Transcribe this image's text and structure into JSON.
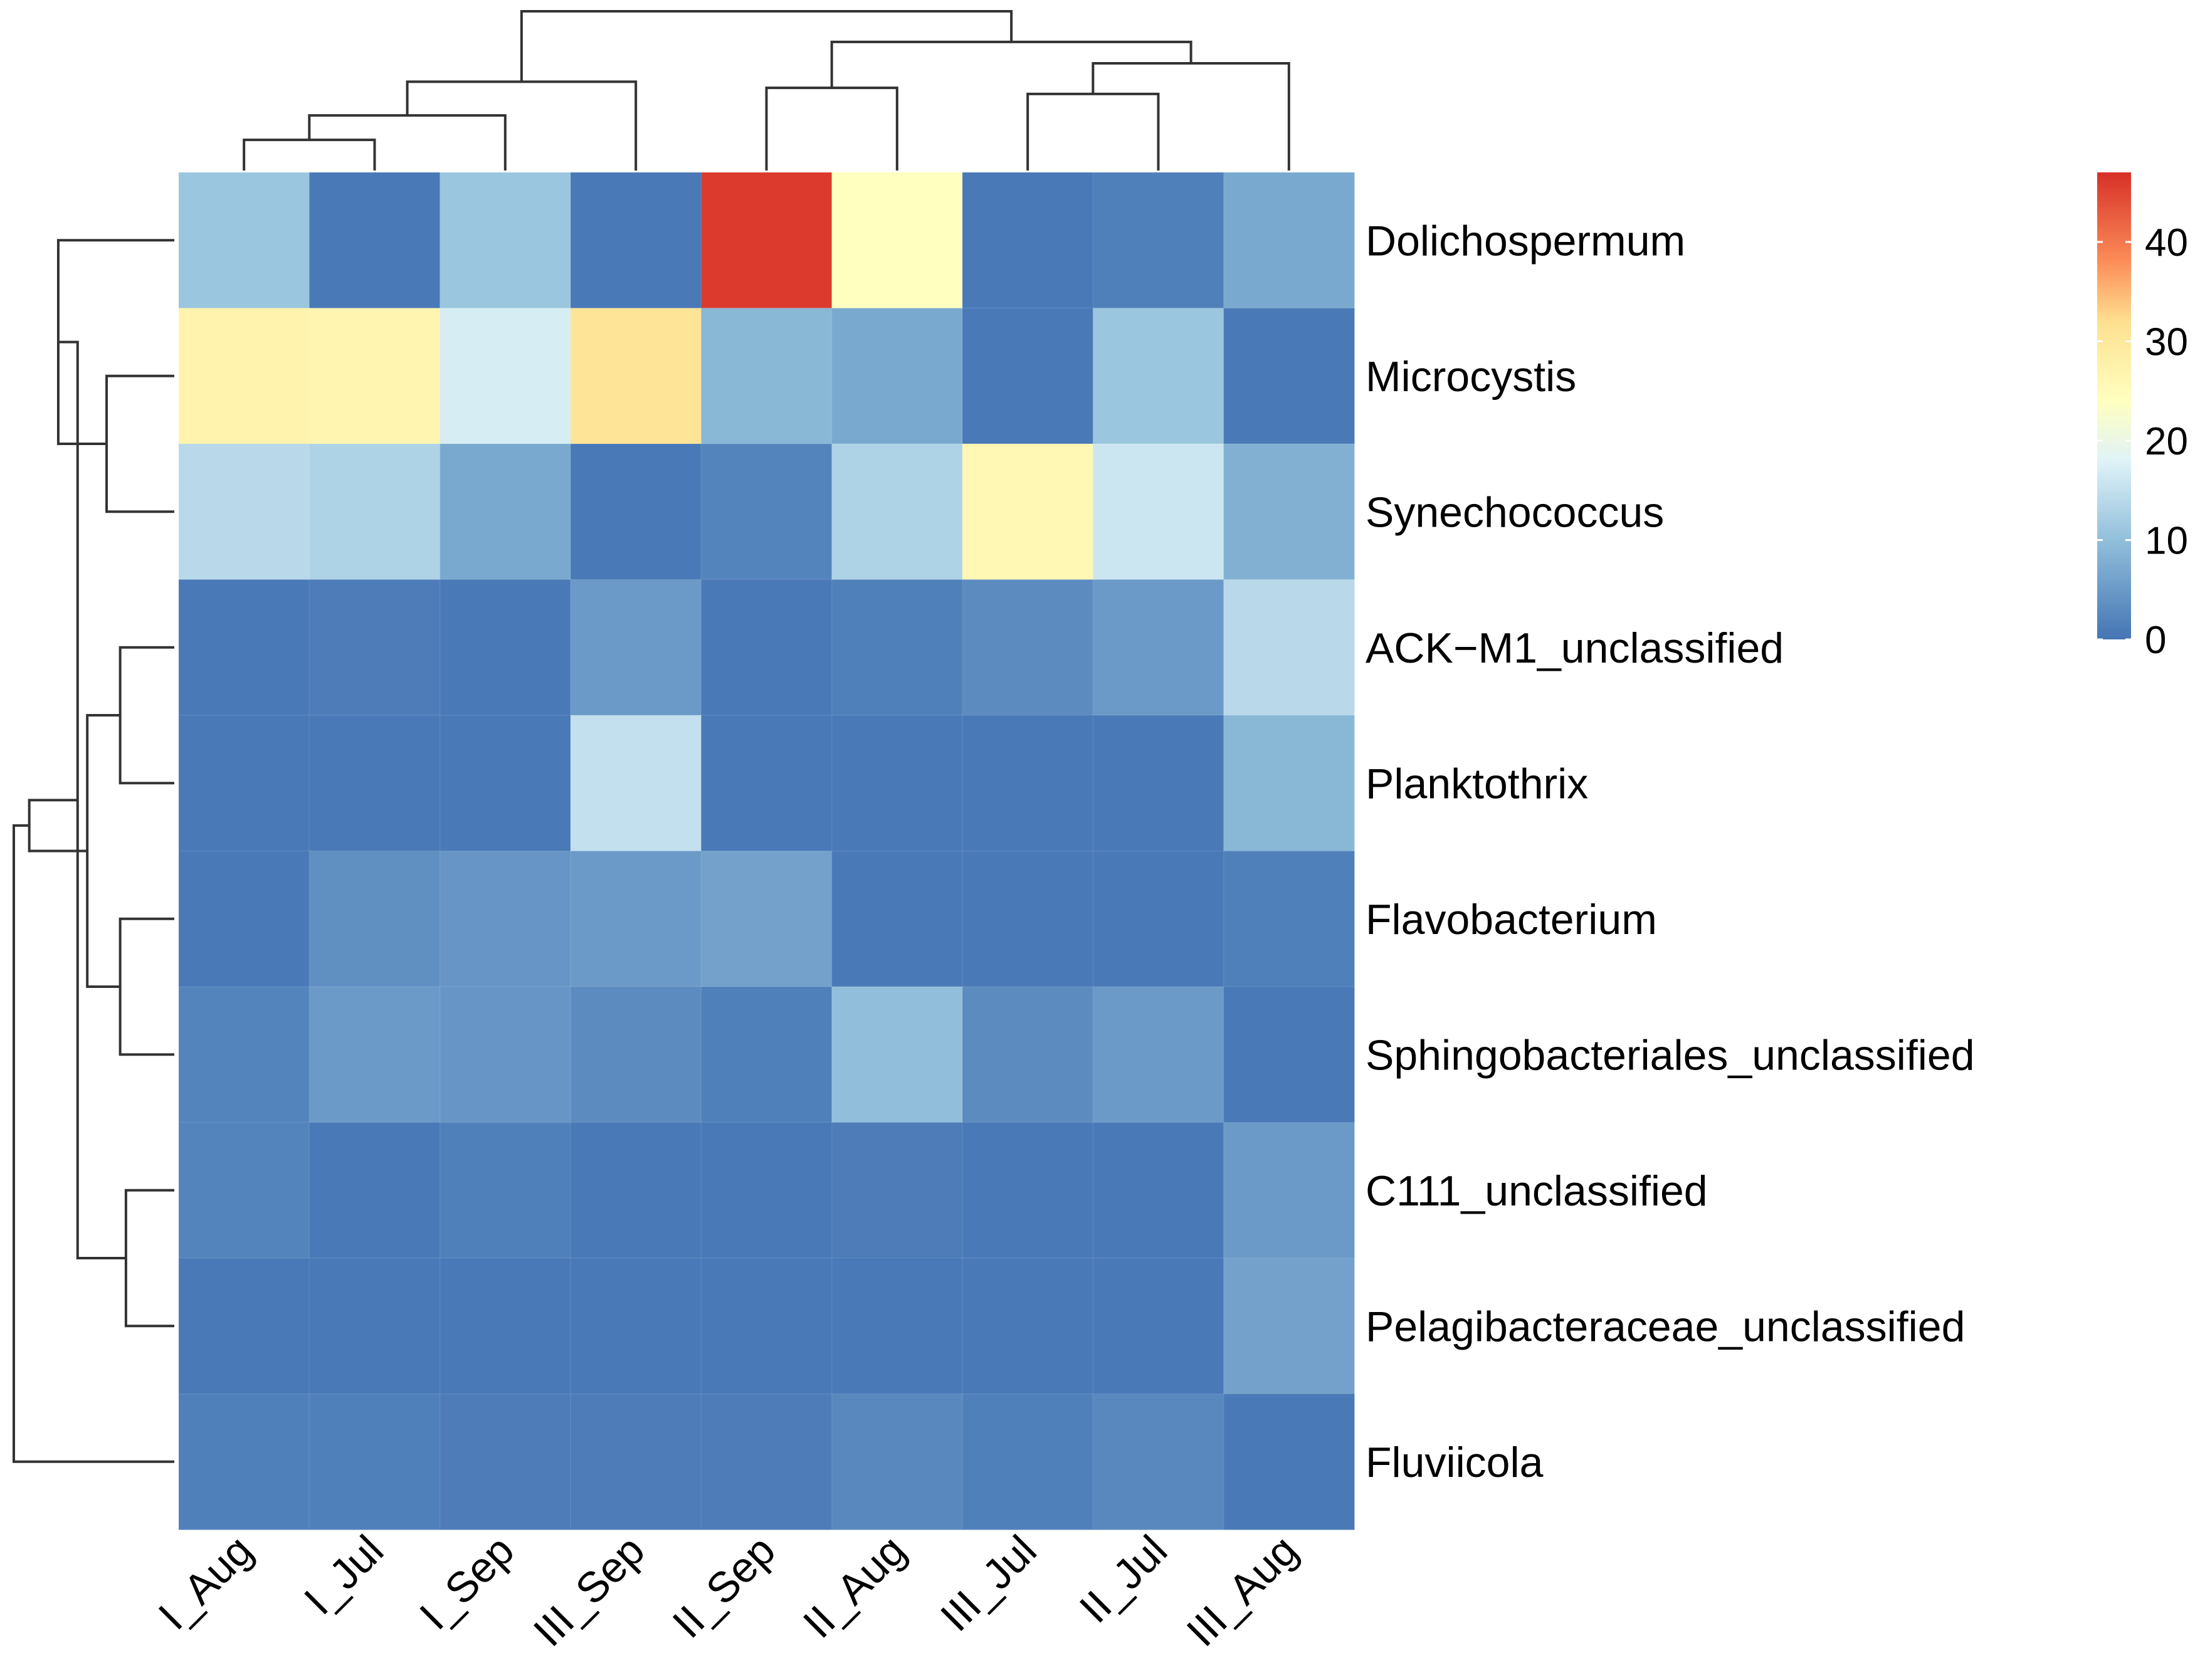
{
  "chart_data": {
    "type": "heatmap",
    "title": "",
    "rows": [
      "Dolichospermum",
      "Microcystis",
      "Synechococcus",
      "ACK−M1_unclassified",
      "Planktothrix",
      "Flavobacterium",
      "Sphingobacteriales_unclassified",
      "C111_unclassified",
      "Pelagibacteraceae_unclassified",
      "Fluviicola"
    ],
    "columns": [
      "I_Aug",
      "I_Jul",
      "I_Sep",
      "III_Sep",
      "II_Sep",
      "II_Aug",
      "III_Jul",
      "II_Jul",
      "III_Aug"
    ],
    "values": [
      [
        11,
        0.5,
        11,
        0.5,
        46,
        24,
        0.5,
        1.5,
        7
      ],
      [
        27,
        26.5,
        17,
        31,
        9,
        7,
        0.5,
        11,
        0.5
      ],
      [
        14,
        13,
        7,
        0.5,
        2,
        13,
        26,
        16,
        8
      ],
      [
        0.5,
        1,
        0.5,
        5,
        0.5,
        1.5,
        3,
        5,
        14
      ],
      [
        0.5,
        0.5,
        0.5,
        15,
        0.5,
        0.5,
        0.5,
        0.5,
        9
      ],
      [
        0.5,
        3.5,
        4.5,
        5,
        6,
        0.5,
        0.5,
        0.5,
        1.5
      ],
      [
        2,
        5,
        4.5,
        3,
        1.5,
        10,
        3,
        5,
        0.5
      ],
      [
        2,
        0.5,
        1.5,
        0.5,
        0.5,
        1,
        0.5,
        0.5,
        5
      ],
      [
        0.5,
        0.5,
        0.5,
        0.5,
        0.5,
        0.5,
        0.5,
        0.5,
        6
      ],
      [
        1.5,
        1.5,
        1,
        1,
        1,
        2.5,
        1.5,
        2.5,
        0.5
      ]
    ],
    "color_scale": {
      "min": 0,
      "max": 47,
      "stops": [
        {
          "value": 0,
          "color": "#4575b4"
        },
        {
          "value": 10,
          "color": "#91bfdb"
        },
        {
          "value": 18,
          "color": "#e0f3f8"
        },
        {
          "value": 24,
          "color": "#ffffbf"
        },
        {
          "value": 32,
          "color": "#fee090"
        },
        {
          "value": 38,
          "color": "#fc8d59"
        },
        {
          "value": 47,
          "color": "#d73027"
        }
      ],
      "ticks": [
        0,
        10,
        20,
        30,
        40
      ]
    },
    "legend_position": "top-right",
    "row_dendrogram": [
      [
        2,
        3,
        3.5
      ],
      [
        1,
        11,
        6
      ],
      [
        8,
        9,
        2.5
      ],
      [
        6,
        7,
        2.8
      ],
      [
        4,
        5,
        2.8
      ],
      [
        14,
        15,
        4.5
      ],
      [
        12,
        13,
        5
      ],
      [
        16,
        17,
        7.5
      ],
      [
        10,
        18,
        8.3
      ]
    ],
    "col_dendrogram": [
      [
        1,
        2,
        1
      ],
      [
        10,
        3,
        1.8
      ],
      [
        5,
        6,
        2.7
      ],
      [
        7,
        8,
        2.5
      ],
      [
        9,
        13,
        3.5
      ],
      [
        11,
        4,
        2.9
      ],
      [
        14,
        12,
        4.2
      ],
      [
        15,
        16,
        5.2
      ]
    ]
  }
}
